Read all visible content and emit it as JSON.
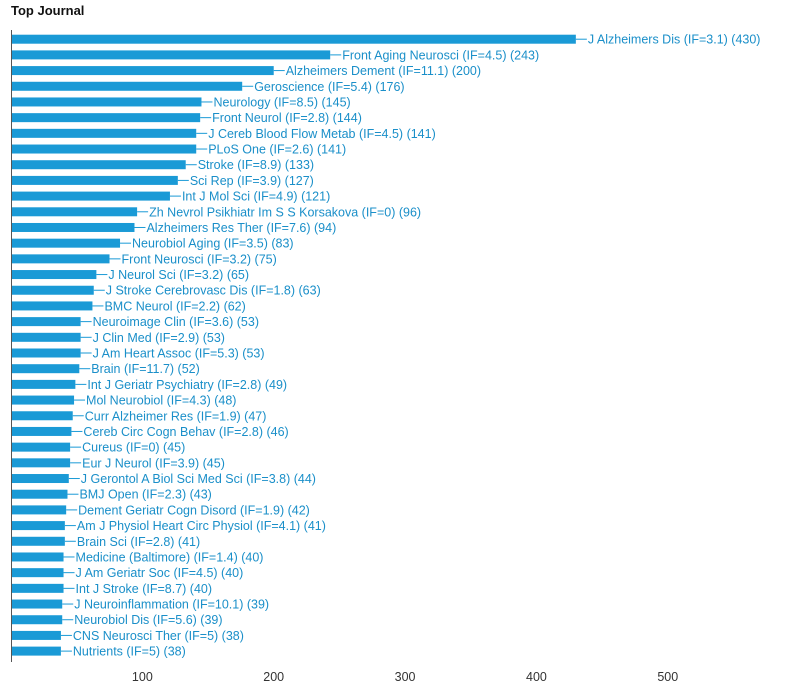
{
  "chart_data": {
    "type": "bar",
    "orientation": "horizontal",
    "title": "Top Journal",
    "bar_color": "#1a9ad6",
    "label_color": "#1a8fc9",
    "xlim": [
      0,
      560
    ],
    "xticks": [
      100,
      200,
      300,
      400,
      500
    ],
    "categories": [
      "J Alzheimers Dis (IF=3.1) (430)",
      "Front Aging Neurosci (IF=4.5) (243)",
      "Alzheimers Dement (IF=11.1) (200)",
      "Geroscience (IF=5.4) (176)",
      "Neurology (IF=8.5) (145)",
      "Front Neurol (IF=2.8) (144)",
      "J Cereb Blood Flow Metab (IF=4.5) (141)",
      "PLoS One (IF=2.6) (141)",
      "Stroke (IF=8.9) (133)",
      "Sci Rep (IF=3.9) (127)",
      "Int J Mol Sci (IF=4.9) (121)",
      "Zh Nevrol Psikhiatr Im S S Korsakova (IF=0) (96)",
      "Alzheimers Res Ther (IF=7.6) (94)",
      "Neurobiol Aging (IF=3.5) (83)",
      "Front Neurosci (IF=3.2) (75)",
      "J Neurol Sci (IF=3.2) (65)",
      "J Stroke Cerebrovasc Dis (IF=1.8) (63)",
      "BMC Neurol (IF=2.2) (62)",
      "Neuroimage Clin (IF=3.6) (53)",
      "J Clin Med (IF=2.9) (53)",
      "J Am Heart Assoc (IF=5.3) (53)",
      "Brain (IF=11.7) (52)",
      "Int J Geriatr Psychiatry (IF=2.8) (49)",
      "Mol Neurobiol (IF=4.3) (48)",
      "Curr Alzheimer Res (IF=1.9) (47)",
      "Cereb Circ Cogn Behav (IF=2.8) (46)",
      "Cureus (IF=0) (45)",
      "Eur J Neurol (IF=3.9) (45)",
      "J Gerontol A Biol Sci Med Sci (IF=3.8) (44)",
      "BMJ Open (IF=2.3) (43)",
      "Dement Geriatr Cogn Disord (IF=1.9) (42)",
      "Am J Physiol Heart Circ Physiol (IF=4.1) (41)",
      "Brain Sci (IF=2.8) (41)",
      "Medicine (Baltimore) (IF=1.4) (40)",
      "J Am Geriatr Soc (IF=4.5) (40)",
      "Int J Stroke (IF=8.7) (40)",
      "J Neuroinflammation (IF=10.1) (39)",
      "Neurobiol Dis (IF=5.6) (39)",
      "CNS Neurosci Ther (IF=5) (38)",
      "Nutrients (IF=5) (38)"
    ],
    "values": [
      430,
      243,
      200,
      176,
      145,
      144,
      141,
      141,
      133,
      127,
      121,
      96,
      94,
      83,
      75,
      65,
      63,
      62,
      53,
      53,
      53,
      52,
      49,
      48,
      47,
      46,
      45,
      45,
      44,
      43,
      42,
      41,
      41,
      40,
      40,
      40,
      39,
      39,
      38,
      38
    ]
  }
}
